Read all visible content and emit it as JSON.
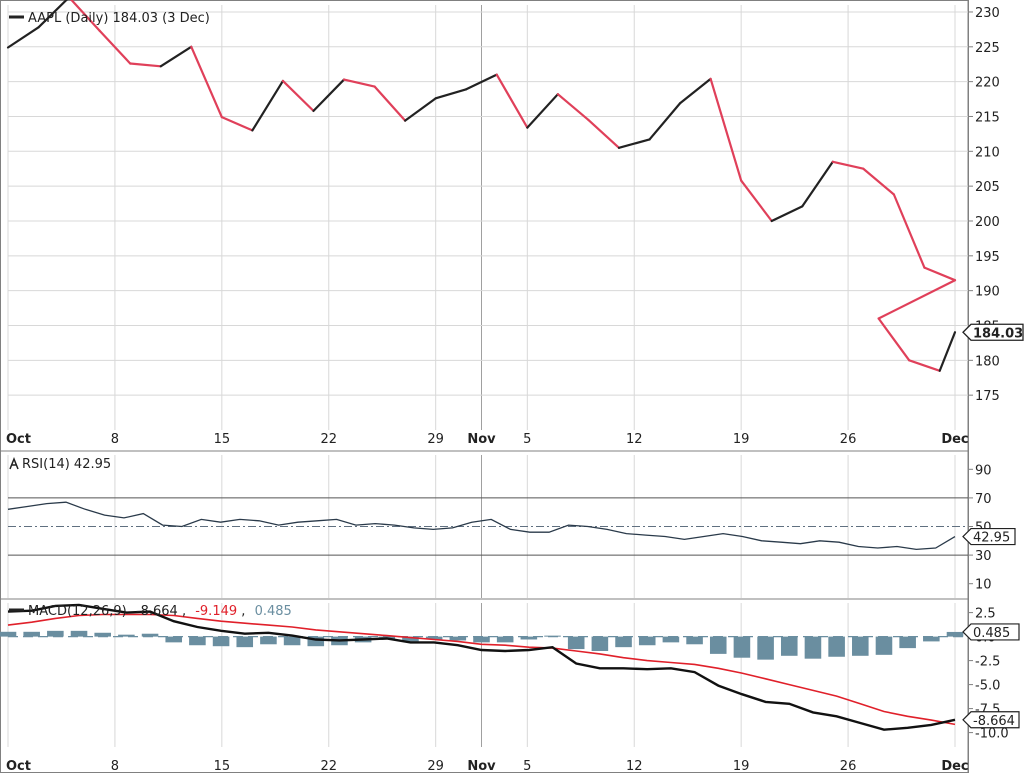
{
  "colors": {
    "up": "#222222",
    "down": "#e0405a",
    "signal": "#e0202a",
    "histogram": "#6a8ea0",
    "rsi_line": "#2a3a4a",
    "grid": "#d8d8d8",
    "frame": "#808080"
  },
  "chart_data": [
    {
      "type": "line",
      "title": "AAPL (Daily) 184.03 (3 Dec)",
      "legend_icon": "line-swatch-icon",
      "ylim": [
        170,
        231
      ],
      "yticks": [
        175,
        180,
        185,
        190,
        195,
        200,
        205,
        210,
        215,
        220,
        225,
        230
      ],
      "last_value_label": "184.03",
      "x_labels": [
        "Oct",
        "8",
        "15",
        "22",
        "29",
        "Nov",
        "5",
        "12",
        "19",
        "26",
        "Dec"
      ],
      "x_label_index": [
        0,
        7,
        14,
        21,
        28,
        31,
        34,
        41,
        48,
        55,
        62
      ],
      "series": [
        {
          "x": [
            0,
            2,
            4,
            6,
            8,
            10,
            12,
            14,
            16,
            18,
            20,
            22,
            24,
            26,
            28,
            30,
            32,
            34,
            36,
            38,
            40,
            42,
            44,
            46,
            48,
            50,
            52,
            54,
            56,
            58,
            60,
            62
          ],
          "values": [
            224.9,
            227.8,
            232.1,
            227.3,
            222.6,
            222.2,
            225.0,
            214.9,
            213.0,
            220.1,
            215.8,
            220.3,
            219.3,
            214.4,
            217.6,
            218.9,
            221.0,
            213.4,
            218.2,
            214.5,
            210.5,
            211.7,
            216.9,
            220.4,
            205.8,
            200.0,
            202.1,
            208.5,
            207.5,
            203.8,
            193.3,
            191.5
          ]
        }
      ]
    },
    {
      "type": "line",
      "title": "RSI(14) 42.95",
      "legend_icon": "rsi-indicator-icon",
      "ylim": [
        0,
        100
      ],
      "yticks": [
        10,
        30,
        50,
        70,
        90
      ],
      "reference_levels": [
        30,
        50,
        70
      ],
      "last_value_label": "42.95",
      "series": [
        {
          "values": [
            62,
            64,
            66,
            67,
            62,
            58,
            56,
            59,
            51,
            50,
            55,
            53,
            55,
            54,
            51,
            53,
            54,
            55,
            51,
            52,
            51,
            49,
            48,
            49,
            53,
            55,
            48,
            46,
            46,
            51,
            50,
            48,
            45,
            44,
            43,
            41,
            43,
            45,
            43,
            40,
            39,
            38,
            40,
            39,
            36,
            35,
            36,
            34,
            35,
            42.95
          ]
        }
      ]
    },
    {
      "type": "bar",
      "title": "MACD(12,26,9)",
      "legend_icon": "line-swatch-icon",
      "legend_values": [
        "-8.664",
        "-9.149",
        "0.485"
      ],
      "ylim": [
        -11.5,
        3.5
      ],
      "yticks": [
        2.5,
        0,
        -2.5,
        -5.0,
        -7.5,
        -10.0
      ],
      "ytick_labels": [
        "2.5",
        "0.0",
        "-2.5",
        "-5.0",
        "-7.5",
        "-10.0"
      ],
      "last_value_labels": [
        "0.485",
        "-8.664"
      ],
      "series": [
        {
          "name": "MACD",
          "values": [
            2.6,
            2.7,
            3.2,
            3.3,
            2.9,
            2.5,
            2.6,
            1.6,
            1.0,
            0.6,
            0.3,
            0.4,
            0.1,
            -0.3,
            -0.4,
            -0.3,
            -0.2,
            -0.6,
            -0.6,
            -0.9,
            -1.4,
            -1.5,
            -1.4,
            -1.1,
            -2.8,
            -3.3,
            -3.3,
            -3.4,
            -3.3,
            -3.7,
            -5.1,
            -6.0,
            -6.8,
            -7.0,
            -7.9,
            -8.3,
            -9.0,
            -9.7,
            -9.5,
            -9.2,
            -8.664
          ]
        },
        {
          "name": "Signal",
          "values": [
            1.2,
            1.5,
            1.9,
            2.2,
            2.3,
            2.3,
            2.3,
            2.2,
            1.9,
            1.6,
            1.4,
            1.2,
            1.0,
            0.7,
            0.5,
            0.3,
            0.1,
            -0.1,
            -0.3,
            -0.5,
            -0.8,
            -0.9,
            -1.1,
            -1.2,
            -1.5,
            -1.8,
            -2.2,
            -2.5,
            -2.7,
            -2.9,
            -3.3,
            -3.8,
            -4.4,
            -5.0,
            -5.6,
            -6.2,
            -7.0,
            -7.8,
            -8.3,
            -8.7,
            -9.149
          ]
        },
        {
          "name": "Histogram",
          "values": [
            0.5,
            0.5,
            0.6,
            0.6,
            0.4,
            0.2,
            0.3,
            -0.6,
            -0.9,
            -1.0,
            -1.1,
            -0.8,
            -0.9,
            -1.0,
            -0.9,
            -0.6,
            -0.3,
            -0.5,
            -0.3,
            -0.4,
            -0.6,
            -0.6,
            -0.3,
            0.1,
            -1.3,
            -1.5,
            -1.1,
            -0.9,
            -0.6,
            -0.8,
            -1.8,
            -2.2,
            -2.4,
            -2.0,
            -2.3,
            -2.1,
            -2.0,
            -1.9,
            -1.2,
            -0.5,
            0.485
          ]
        }
      ]
    }
  ]
}
